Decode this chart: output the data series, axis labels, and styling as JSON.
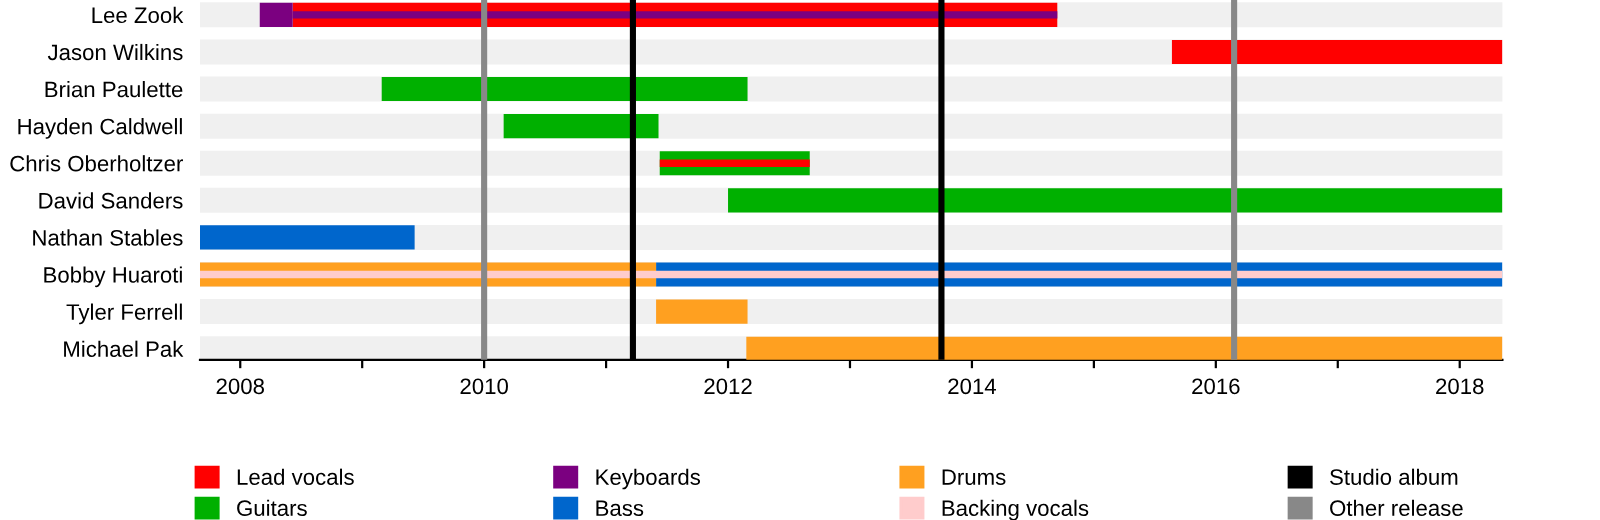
{
  "chart_data": {
    "type": "bar",
    "orientation": "horizontal",
    "categories": [
      "Lee Zook",
      "Jason Wilkins",
      "Brian Paulette",
      "Hayden Caldwell",
      "Chris Oberholtzer",
      "David Sanders",
      "Nathan Stables",
      "Bobby Huaroti",
      "Tyler Ferrell",
      "Michael Pak"
    ],
    "series": [
      {
        "name": "Lead vocals",
        "color": "#ff0000",
        "base": [
          2008.43,
          2015.64,
          null,
          null,
          null,
          null,
          null,
          null,
          null,
          null
        ],
        "values": [
          6.27,
          2.71,
          null,
          null,
          null,
          null,
          null,
          null,
          null,
          null
        ]
      },
      {
        "name": "Guitars",
        "color": "#00b000",
        "base": [
          null,
          null,
          2009.16,
          2010.16,
          2011.44,
          2012.0,
          null,
          null,
          null,
          null
        ],
        "values": [
          null,
          null,
          3.0,
          1.27,
          1.23,
          6.35,
          null,
          null,
          null,
          null
        ]
      },
      {
        "name": "Keyboards",
        "color": "#7b0080",
        "base": [
          2008.16,
          null,
          null,
          null,
          null,
          null,
          null,
          null,
          null,
          null
        ],
        "values": [
          0.27,
          null,
          null,
          null,
          null,
          null,
          null,
          null,
          null,
          null
        ]
      },
      {
        "name": "Bass",
        "color": "#0066cc",
        "base": [
          null,
          null,
          null,
          null,
          null,
          null,
          2007.67,
          2011.41,
          null,
          null
        ],
        "values": [
          null,
          null,
          null,
          null,
          null,
          null,
          1.76,
          6.94,
          null,
          null
        ]
      },
      {
        "name": "Drums",
        "color": "#ffa020",
        "base": [
          null,
          null,
          null,
          null,
          null,
          null,
          null,
          2007.67,
          2011.41,
          2012.15
        ],
        "values": [
          null,
          null,
          null,
          null,
          null,
          null,
          null,
          3.74,
          0.75,
          6.2
        ]
      },
      {
        "name": "Backing vocals",
        "color": "#ffcccc",
        "base": [
          null,
          null,
          null,
          null,
          null,
          null,
          null,
          2007.67,
          null,
          null
        ],
        "values": [
          null,
          null,
          null,
          null,
          null,
          null,
          null,
          10.68,
          null,
          null
        ]
      },
      {
        "color": "#7b0080",
        "base": [
          2008.43,
          null,
          null,
          null,
          null,
          null,
          null,
          null,
          null,
          null
        ],
        "values": [
          6.27,
          null,
          null,
          null,
          null,
          null,
          null,
          null,
          null,
          null
        ]
      },
      {
        "color": "#ff0000",
        "base": [
          null,
          null,
          null,
          null,
          2011.44,
          null,
          null,
          null,
          null,
          null
        ],
        "values": [
          null,
          null,
          null,
          null,
          1.23,
          null,
          null,
          null,
          null,
          null
        ]
      }
    ],
    "ref_lines": [
      {
        "axis": "x",
        "value": 2011.22,
        "label": "Studio album",
        "color": "#000000"
      },
      {
        "axis": "x",
        "value": 2013.75,
        "color": "#000000"
      },
      {
        "axis": "x",
        "value": 2010.0,
        "label": "Other release",
        "color": "#888888"
      },
      {
        "axis": "x",
        "value": 2016.15,
        "color": "#888888"
      }
    ],
    "xlim": [
      2007.67,
      2018.35
    ],
    "xticks": [
      2008,
      {
        "value": 2009,
        "label": null
      },
      2010,
      {
        "value": 2011,
        "label": null
      },
      2012,
      {
        "value": 2013,
        "label": null
      },
      2014,
      {
        "value": 2015,
        "label": null
      },
      2016,
      {
        "value": 2017,
        "label": null
      },
      2018
    ],
    "grid": "y",
    "legend": "bottom"
  }
}
